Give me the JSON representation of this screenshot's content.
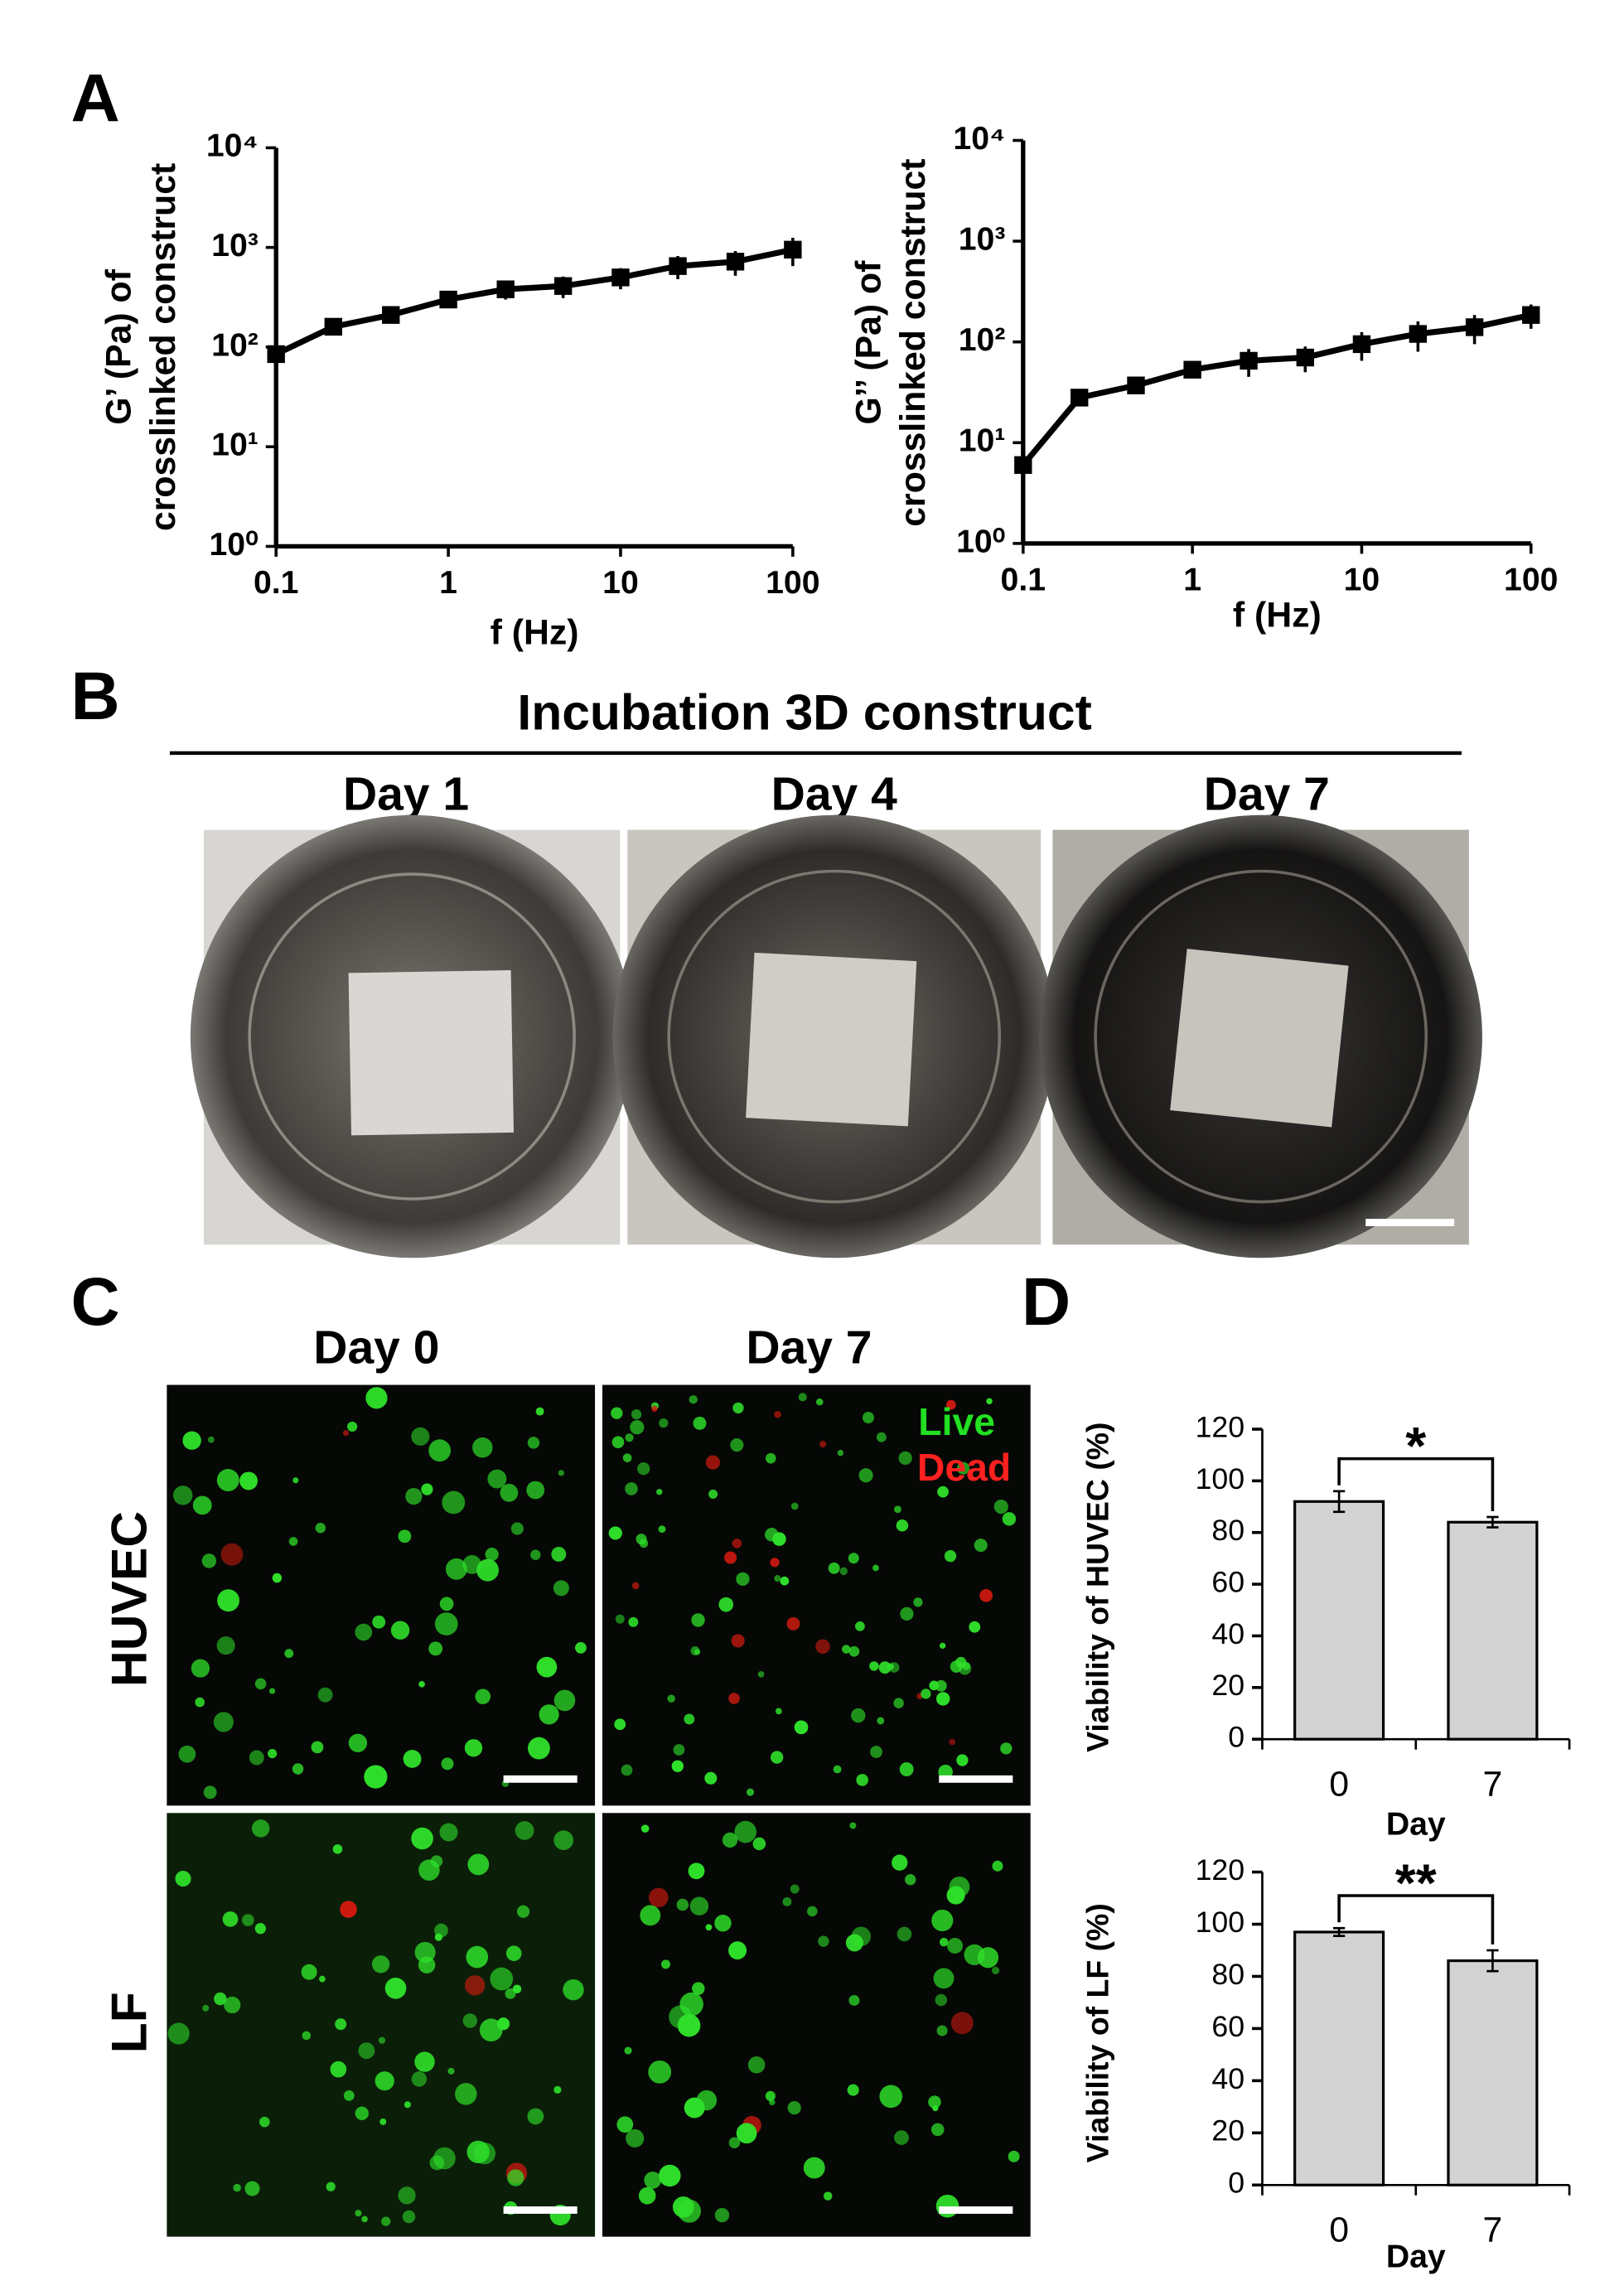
{
  "panels": {
    "a": {
      "letter": "A"
    },
    "b": {
      "letter": "B",
      "title": "Incubation 3D construct",
      "days": [
        "Day 1",
        "Day 4",
        "Day 7"
      ]
    },
    "c": {
      "letter": "C",
      "days": [
        "Day 0",
        "Day 7"
      ],
      "rows": [
        "HUVEC",
        "LF"
      ],
      "legend": [
        "Live",
        "Dead"
      ]
    },
    "d": {
      "letter": "D"
    }
  },
  "chart_data": [
    {
      "type": "line",
      "xscale": "log",
      "yscale": "log",
      "color": "#000000",
      "x": [
        0.1,
        0.215,
        0.464,
        1,
        2.15,
        4.64,
        10,
        21.5,
        46.4,
        100
      ],
      "values": [
        85,
        160,
        210,
        300,
        380,
        410,
        500,
        650,
        720,
        950
      ],
      "errors": [
        15,
        15,
        20,
        30,
        80,
        100,
        120,
        170,
        200,
        300
      ],
      "xlim": [
        0.1,
        100
      ],
      "xticks": [
        0.1,
        1,
        10,
        100
      ],
      "ylim": [
        1,
        10000
      ],
      "yticks": [
        {
          "value": 1,
          "label": "10⁰"
        },
        {
          "value": 10,
          "label": "10¹"
        },
        {
          "value": 100,
          "label": "10²"
        },
        {
          "value": 1000,
          "label": "10³"
        },
        {
          "value": 10000,
          "label": "10⁴"
        }
      ],
      "xlabel": "f (Hz)",
      "ylabel": [
        "G’ (Pa) of",
        "crosslinked construct"
      ]
    },
    {
      "type": "line",
      "xscale": "log",
      "yscale": "log",
      "color": "#000000",
      "x": [
        0.1,
        0.215,
        0.464,
        1,
        2.15,
        4.64,
        10,
        21.5,
        46.4,
        100
      ],
      "values": [
        6,
        28,
        37,
        53,
        65,
        70,
        95,
        120,
        140,
        185
      ],
      "errors": [
        1,
        3,
        4,
        8,
        20,
        20,
        30,
        40,
        45,
        50
      ],
      "xlim": [
        0.1,
        100
      ],
      "xticks": [
        0.1,
        1,
        10,
        100
      ],
      "ylim": [
        1,
        10000
      ],
      "yticks": [
        {
          "value": 1,
          "label": "10⁰"
        },
        {
          "value": 10,
          "label": "10¹"
        },
        {
          "value": 100,
          "label": "10²"
        },
        {
          "value": 1000,
          "label": "10³"
        },
        {
          "value": 10000,
          "label": "10⁴"
        }
      ],
      "xlabel": "f (Hz)",
      "ylabel": [
        "G’’ (Pa) of",
        "crosslinked construct"
      ]
    },
    {
      "type": "bar",
      "color": "#d3d3d3",
      "categories": [
        "0",
        "7"
      ],
      "values": [
        92,
        84
      ],
      "errors": [
        4,
        2
      ],
      "ylim": [
        0,
        120
      ],
      "yticks": [
        0,
        20,
        40,
        60,
        80,
        100,
        120
      ],
      "xlabel": "Day",
      "ylabel": "Viability of HUVEC (%)",
      "annotation": "*"
    },
    {
      "type": "bar",
      "color": "#d3d3d3",
      "categories": [
        "0",
        "7"
      ],
      "values": [
        97,
        86
      ],
      "errors": [
        1.5,
        4
      ],
      "ylim": [
        0,
        120
      ],
      "yticks": [
        0,
        20,
        40,
        60,
        80,
        100,
        120
      ],
      "xlabel": "Day",
      "ylabel": "Viability of LF (%)",
      "annotation": "**"
    }
  ]
}
